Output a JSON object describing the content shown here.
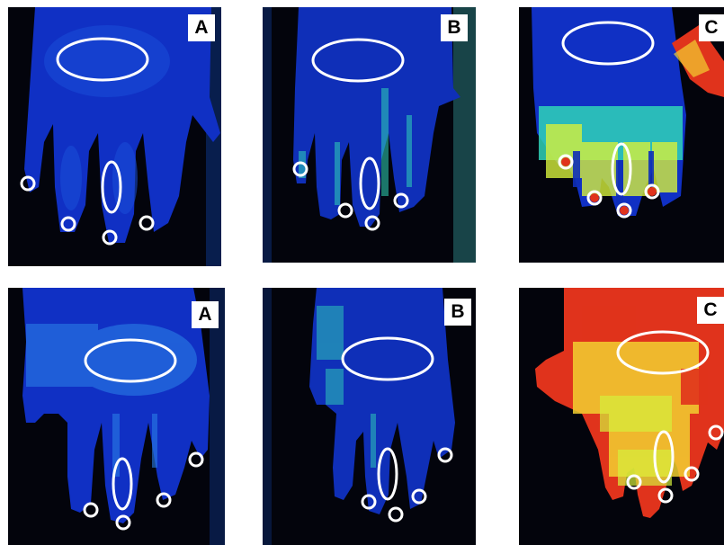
{
  "colors": {
    "background": "#03040c",
    "low": "#0a1fb4",
    "mid_low": "#1a5ae0",
    "mid": "#2fd4b8",
    "high": "#d6f03c",
    "very_high": "#e0331c",
    "roi": "#ffffff"
  },
  "panels": [
    {
      "id": "top-a",
      "label": "A",
      "level": 0.05
    },
    {
      "id": "top-b",
      "label": "B",
      "level": 0.18
    },
    {
      "id": "top-c",
      "label": "C",
      "level": 0.62
    },
    {
      "id": "bottom-a",
      "label": "A",
      "level": 0.12
    },
    {
      "id": "bottom-b",
      "label": "B",
      "level": 0.15
    },
    {
      "id": "bottom-c",
      "label": "C",
      "level": 0.9
    }
  ]
}
